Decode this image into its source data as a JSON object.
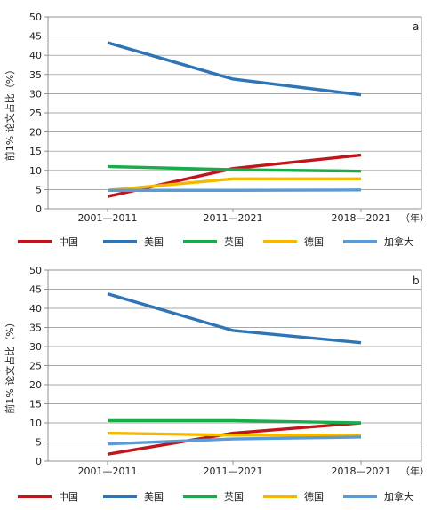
{
  "chart_data": [
    {
      "type": "line",
      "panel_label": "a",
      "ylabel": "前1% 论文占比（%）",
      "xunit": "（年）",
      "categories": [
        "2001—2011",
        "2011—2021",
        "2018—2021"
      ],
      "ylim": [
        0,
        50
      ],
      "yticks": [
        0,
        5,
        10,
        15,
        20,
        25,
        30,
        35,
        40,
        45,
        50
      ],
      "grid": "horizontal",
      "legend_position": "bottom",
      "series": [
        {
          "name": "中国",
          "color": "#c0151b",
          "values": [
            3.2,
            10.5,
            14.0
          ]
        },
        {
          "name": "美国",
          "color": "#2e75b6",
          "values": [
            43.3,
            33.8,
            29.7
          ]
        },
        {
          "name": "英国",
          "color": "#1aab4a",
          "values": [
            11.0,
            10.2,
            9.8
          ]
        },
        {
          "name": "德国",
          "color": "#f5b800",
          "values": [
            4.8,
            7.8,
            7.8
          ]
        },
        {
          "name": "加拿大",
          "color": "#5b9bd5",
          "values": [
            4.8,
            4.8,
            4.9
          ]
        }
      ]
    },
    {
      "type": "line",
      "panel_label": "b",
      "ylabel": "前1% 论文占比（%）",
      "xunit": "（年）",
      "categories": [
        "2001—2011",
        "2011—2021",
        "2018—2021"
      ],
      "ylim": [
        0,
        50
      ],
      "yticks": [
        0,
        5,
        10,
        15,
        20,
        25,
        30,
        35,
        40,
        45,
        50
      ],
      "grid": "horizontal",
      "legend_position": "bottom",
      "series": [
        {
          "name": "中国",
          "color": "#c0151b",
          "values": [
            1.8,
            7.3,
            10.0
          ]
        },
        {
          "name": "美国",
          "color": "#2e75b6",
          "values": [
            43.8,
            34.2,
            31.0
          ]
        },
        {
          "name": "英国",
          "color": "#1aab4a",
          "values": [
            10.6,
            10.6,
            10.0
          ]
        },
        {
          "name": "德国",
          "color": "#f5b800",
          "values": [
            7.3,
            6.8,
            6.8
          ]
        },
        {
          "name": "加拿大",
          "color": "#5b9bd5",
          "values": [
            4.5,
            5.8,
            6.3
          ]
        }
      ]
    }
  ]
}
